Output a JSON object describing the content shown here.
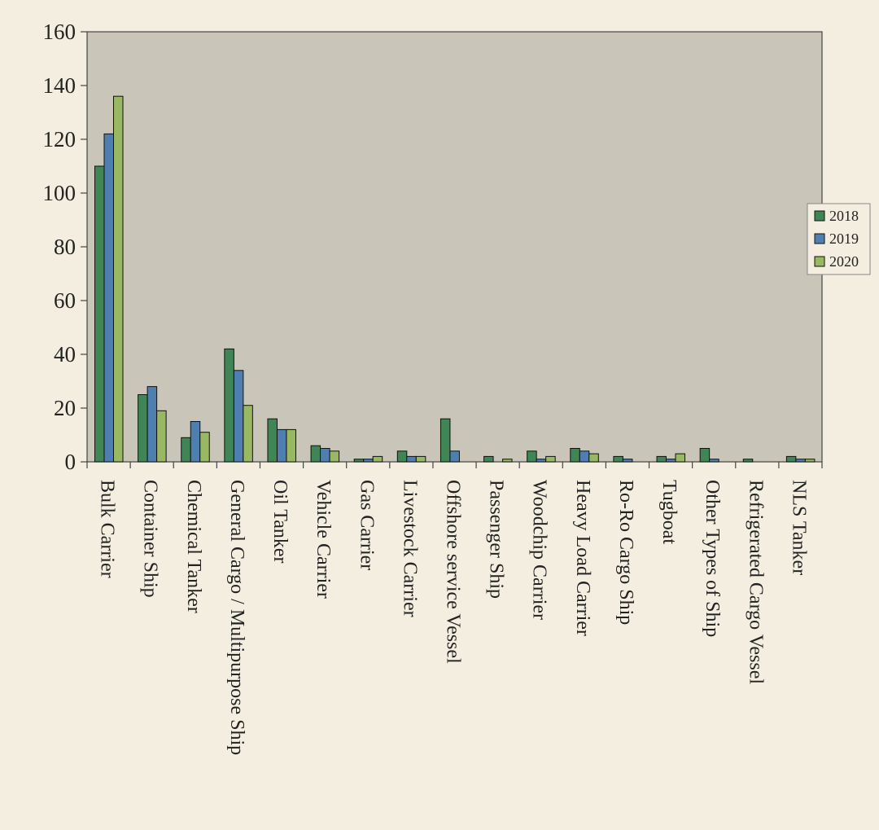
{
  "chart_data": {
    "type": "bar",
    "title": "",
    "xlabel": "",
    "ylabel": "",
    "ylim": [
      0,
      160
    ],
    "yticks": [
      0,
      20,
      40,
      60,
      80,
      100,
      120,
      140,
      160
    ],
    "grid": false,
    "legend_position": "right",
    "categories": [
      "Bulk Carrier",
      "Container Ship",
      "Chemical Tanker",
      "General Cargo / Multipurpose Ship",
      "Oil Tanker",
      "Vehicle Carrier",
      "Gas Carrier",
      "Livestock Carrier",
      "Offshore service Vessel",
      "Passenger Ship",
      "Woodchip Carrier",
      "Heavy Load Carrier",
      "Ro-Ro Cargo Ship",
      "Tugboat",
      "Other Types of Ship",
      "Refrigerated Cargo Vessel",
      "NLS Tanker"
    ],
    "series": [
      {
        "name": "2018",
        "color": "#3f8555",
        "values": [
          110,
          25,
          9,
          42,
          16,
          6,
          1,
          4,
          16,
          2,
          4,
          5,
          2,
          2,
          5,
          1,
          2
        ]
      },
      {
        "name": "2019",
        "color": "#4f7fb0",
        "values": [
          122,
          28,
          15,
          34,
          12,
          5,
          1,
          2,
          4,
          0,
          1,
          4,
          1,
          1,
          1,
          0,
          1
        ]
      },
      {
        "name": "2020",
        "color": "#98b862",
        "values": [
          136,
          19,
          11,
          21,
          12,
          4,
          2,
          2,
          0,
          1,
          2,
          3,
          0,
          3,
          0,
          0,
          1
        ]
      }
    ]
  },
  "colors": {
    "page_background": "#f3eee0",
    "plot_background": "#c9c5b8",
    "axis": "#444444",
    "bar_outline": "#111111"
  }
}
